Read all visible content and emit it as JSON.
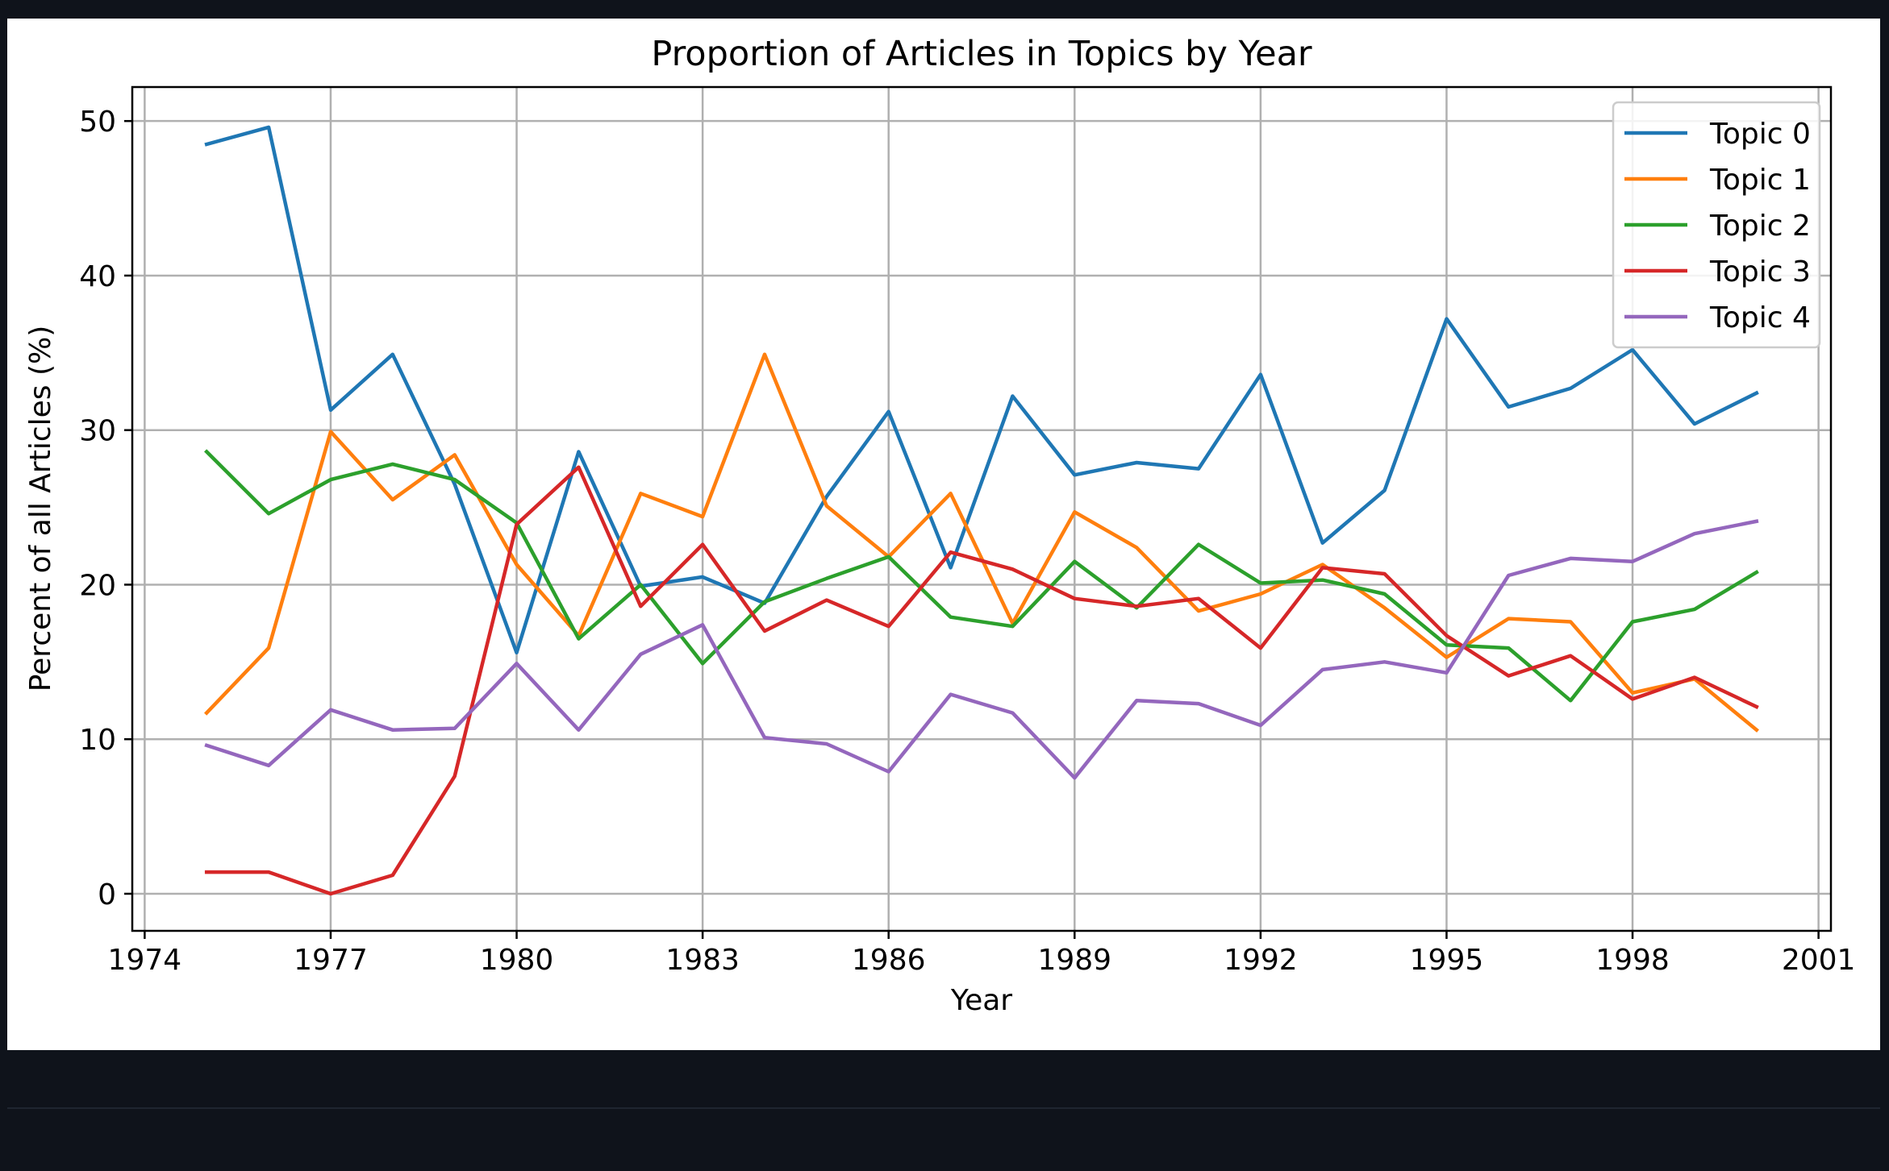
{
  "chart_data": {
    "type": "line",
    "title": "Proportion of Articles in Topics by Year",
    "xlabel": "Year",
    "ylabel": "Percent of all Articles (%)",
    "xlim": [
      1973.8,
      2001.2
    ],
    "ylim": [
      -2.4,
      52.2
    ],
    "xticks": [
      1974,
      1977,
      1980,
      1983,
      1986,
      1989,
      1992,
      1995,
      1998,
      2001
    ],
    "yticks": [
      0,
      10,
      20,
      30,
      40,
      50
    ],
    "grid": true,
    "legend_position": "top-right",
    "x": [
      1975,
      1976,
      1977,
      1978,
      1979,
      1980,
      1981,
      1982,
      1983,
      1984,
      1985,
      1986,
      1987,
      1988,
      1989,
      1990,
      1991,
      1992,
      1993,
      1994,
      1995,
      1996,
      1997,
      1998,
      1999,
      2000
    ],
    "series": [
      {
        "name": "Topic 0",
        "color": "#1f77b4",
        "values": [
          48.5,
          49.6,
          31.3,
          34.9,
          26.5,
          15.6,
          28.6,
          19.9,
          20.5,
          18.8,
          25.7,
          31.2,
          21.1,
          32.2,
          27.1,
          27.9,
          27.5,
          33.6,
          22.7,
          26.1,
          37.2,
          31.5,
          32.7,
          35.2,
          30.4,
          32.4
        ]
      },
      {
        "name": "Topic 1",
        "color": "#ff7f0e",
        "values": [
          11.7,
          15.9,
          29.9,
          25.5,
          28.4,
          21.3,
          16.7,
          25.9,
          24.4,
          34.9,
          25.1,
          21.8,
          25.9,
          17.5,
          24.7,
          22.4,
          18.3,
          19.4,
          21.3,
          18.5,
          15.3,
          17.8,
          17.6,
          13.0,
          13.9,
          10.6
        ]
      },
      {
        "name": "Topic 2",
        "color": "#2ca02c",
        "values": [
          28.6,
          24.6,
          26.8,
          27.8,
          26.8,
          24.0,
          16.5,
          20.0,
          14.9,
          18.9,
          20.4,
          21.8,
          17.9,
          17.3,
          21.5,
          18.5,
          22.6,
          20.1,
          20.3,
          19.4,
          16.1,
          15.9,
          12.5,
          17.6,
          18.4,
          20.8
        ]
      },
      {
        "name": "Topic 3",
        "color": "#d62728",
        "values": [
          1.4,
          1.4,
          0.0,
          1.2,
          7.6,
          23.9,
          27.6,
          18.6,
          22.6,
          17.0,
          19.0,
          17.3,
          22.1,
          21.0,
          19.1,
          18.6,
          19.1,
          15.9,
          21.1,
          20.7,
          16.7,
          14.1,
          15.4,
          12.6,
          14.0,
          12.1
        ]
      },
      {
        "name": "Topic 4",
        "color": "#9467bd",
        "values": [
          9.6,
          8.3,
          11.9,
          10.6,
          10.7,
          14.9,
          10.6,
          15.5,
          17.4,
          10.1,
          9.7,
          7.9,
          12.9,
          11.7,
          7.5,
          12.5,
          12.3,
          10.9,
          14.5,
          15.0,
          14.3,
          20.6,
          21.7,
          21.5,
          23.3,
          24.1
        ]
      }
    ]
  }
}
